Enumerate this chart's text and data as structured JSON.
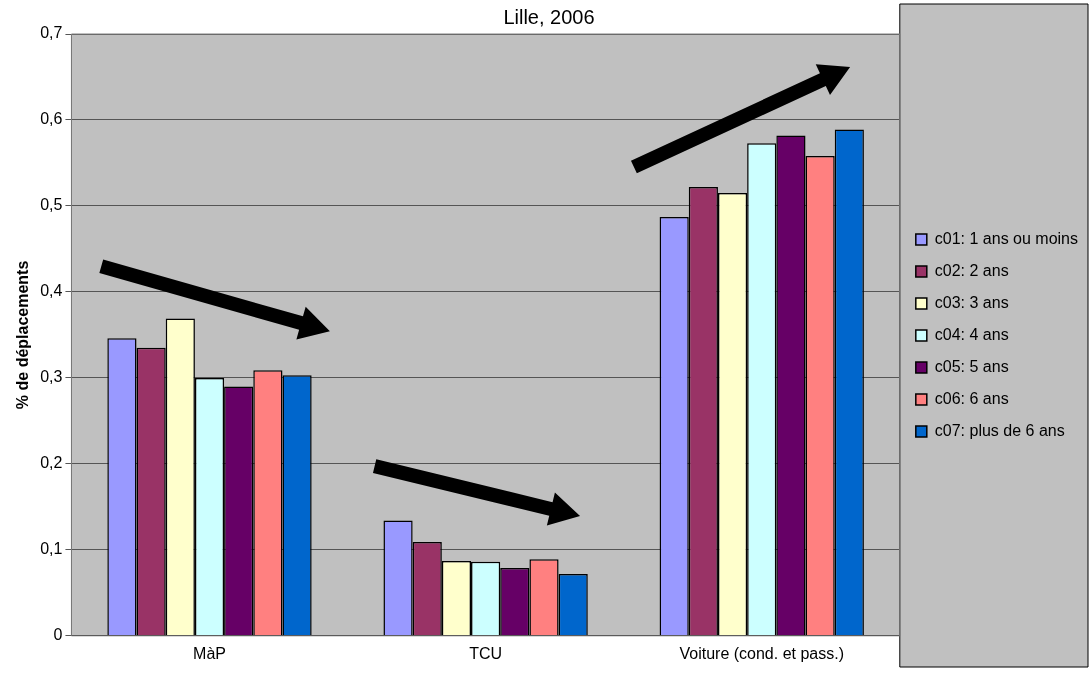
{
  "chart_data": {
    "type": "bar",
    "title": "Lille, 2006",
    "ylabel": "% de déplacements",
    "categories": [
      "MàP",
      "TCU",
      "Voiture (cond. et pass.)"
    ],
    "series": [
      {
        "name": "c01: 1 ans ou moins",
        "color": "#9999ff",
        "values": [
          0.346,
          0.134,
          0.487
        ]
      },
      {
        "name": "c02: 2 ans",
        "color": "#993366",
        "values": [
          0.335,
          0.109,
          0.522
        ]
      },
      {
        "name": "c03: 3 ans",
        "color": "#ffffcc",
        "values": [
          0.369,
          0.087,
          0.515
        ]
      },
      {
        "name": "c04: 4 ans",
        "color": "#ccffff",
        "values": [
          0.3,
          0.086,
          0.573
        ]
      },
      {
        "name": "c05: 5 ans",
        "color": "#660066",
        "values": [
          0.29,
          0.079,
          0.582
        ]
      },
      {
        "name": "c06: 6 ans",
        "color": "#ff8080",
        "values": [
          0.309,
          0.089,
          0.558
        ]
      },
      {
        "name": "c07: plus de 6 ans",
        "color": "#0066cc",
        "values": [
          0.303,
          0.072,
          0.589
        ]
      }
    ],
    "ylim": [
      0,
      0.7
    ],
    "yticks": [
      0,
      {
        "value": 0.1,
        "label": "0,1"
      },
      {
        "value": 0.2,
        "label": "0,2"
      },
      {
        "value": 0.3,
        "label": "0,3"
      },
      {
        "value": 0.4,
        "label": "0,4"
      },
      {
        "value": 0.5,
        "label": "0,5"
      },
      {
        "value": 0.6,
        "label": "0,6"
      },
      {
        "value": 0.7,
        "label": "0,7"
      }
    ],
    "grid": "y",
    "legend": "right"
  }
}
